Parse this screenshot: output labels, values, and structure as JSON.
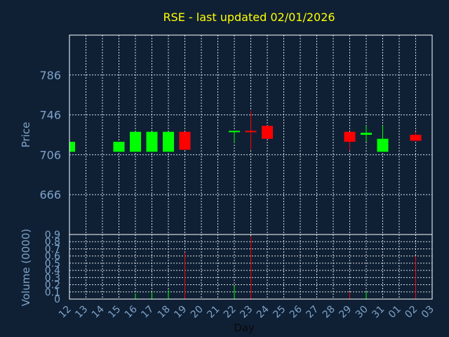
{
  "chart_data": [
    {
      "type": "candlestick",
      "title": "RSE - last updated 02/01/2026",
      "ylabel": "Price",
      "ylim": [
        626,
        826
      ],
      "yticks": [
        666,
        706,
        746,
        786
      ],
      "grid": true,
      "categories": [
        "12",
        "13",
        "14",
        "15",
        "16",
        "17",
        "18",
        "19",
        "20",
        "21",
        "22",
        "23",
        "24",
        "25",
        "26",
        "27",
        "28",
        "29",
        "30",
        "31",
        "01",
        "02",
        "03"
      ],
      "candles": [
        {
          "x": "12",
          "open": 709,
          "close": 719,
          "high": 719,
          "low": 709,
          "color": "#00ff00"
        },
        {
          "x": "15",
          "open": 709,
          "close": 719,
          "high": 719,
          "low": 709,
          "color": "#00ff00"
        },
        {
          "x": "16",
          "open": 709,
          "close": 729,
          "high": 729,
          "low": 709,
          "color": "#00ff00"
        },
        {
          "x": "17",
          "open": 709,
          "close": 729,
          "high": 729,
          "low": 709,
          "color": "#00ff00"
        },
        {
          "x": "18",
          "open": 709,
          "close": 729,
          "high": 729,
          "low": 709,
          "color": "#00ff00"
        },
        {
          "x": "19",
          "open": 729,
          "close": 711,
          "high": 729,
          "low": 711,
          "color": "#ff0000"
        },
        {
          "x": "22",
          "open": 729,
          "close": 730,
          "high": 730,
          "low": 718,
          "color": "#00ff00"
        },
        {
          "x": "23",
          "open": 730,
          "close": 729,
          "high": 750,
          "low": 711,
          "color": "#ff0000"
        },
        {
          "x": "24",
          "open": 735,
          "close": 722,
          "high": 735,
          "low": 722,
          "color": "#ff0000"
        },
        {
          "x": "29",
          "open": 729,
          "close": 719,
          "high": 729,
          "low": 710,
          "color": "#ff0000"
        },
        {
          "x": "30",
          "open": 726,
          "close": 728,
          "high": 735,
          "low": 719,
          "color": "#00ff00"
        },
        {
          "x": "31",
          "open": 709,
          "close": 722,
          "high": 735,
          "low": 709,
          "color": "#00ff00"
        },
        {
          "x": "02",
          "open": 726,
          "close": 720,
          "high": 729,
          "low": 720,
          "color": "#ff0000"
        }
      ]
    },
    {
      "type": "bar",
      "ylabel": "Volume (0000)",
      "xlabel": "Day",
      "ylim": [
        0,
        0.9
      ],
      "ytick_labels": [
        "0",
        "0.1",
        "0.2",
        "0.3",
        "0.4",
        "0.5",
        "0.6",
        "0.7",
        "0.8",
        "0.9"
      ],
      "categories": [
        "12",
        "13",
        "14",
        "15",
        "16",
        "17",
        "18",
        "19",
        "20",
        "21",
        "22",
        "23",
        "24",
        "25",
        "26",
        "27",
        "28",
        "29",
        "30",
        "31",
        "01",
        "02",
        "03"
      ],
      "bars": [
        {
          "x": "16",
          "value": 0.08,
          "color": "#00ff00"
        },
        {
          "x": "17",
          "value": 0.1,
          "color": "#00ff00"
        },
        {
          "x": "18",
          "value": 0.13,
          "color": "#00ff00"
        },
        {
          "x": "19",
          "value": 0.65,
          "color": "#ff0000"
        },
        {
          "x": "22",
          "value": 0.18,
          "color": "#00ff00"
        },
        {
          "x": "23",
          "value": 0.88,
          "color": "#ff0000"
        },
        {
          "x": "29",
          "value": 0.1,
          "color": "#ff0000"
        },
        {
          "x": "30",
          "value": 0.1,
          "color": "#00ff00"
        },
        {
          "x": "02",
          "value": 0.6,
          "color": "#ff0000"
        }
      ]
    }
  ]
}
